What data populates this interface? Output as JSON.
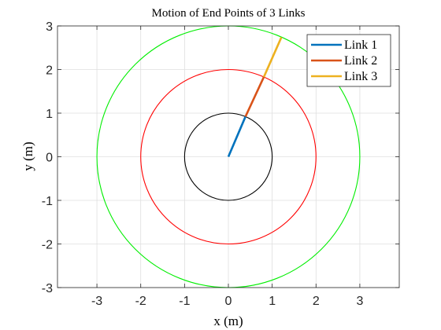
{
  "chart_data": {
    "type": "line",
    "title": "Motion of End Points of 3 Links",
    "xlabel": "x (m)",
    "ylabel": "y (m)",
    "xlim": [
      -3.9,
      3.9
    ],
    "ylim": [
      -3,
      3
    ],
    "xticks": [
      -3,
      -2,
      -1,
      0,
      1,
      2,
      3
    ],
    "yticks": [
      -3,
      -2,
      -1,
      0,
      1,
      2,
      3
    ],
    "xtick_labels": [
      "-3",
      "-2",
      "-1",
      "0",
      "1",
      "2",
      "3"
    ],
    "ytick_labels": [
      "-3",
      "-2",
      "-1",
      "0",
      "1",
      "2",
      "3"
    ],
    "grid": true,
    "legend_position": "top-right",
    "circles": [
      {
        "center": [
          0,
          0
        ],
        "radius": 1,
        "color": "#000000"
      },
      {
        "center": [
          0,
          0
        ],
        "radius": 2,
        "color": "#ff0000"
      },
      {
        "center": [
          0,
          0
        ],
        "radius": 3,
        "color": "#00ee00"
      }
    ],
    "series": [
      {
        "name": "Link 1",
        "x": [
          0,
          0.39
        ],
        "y": [
          0,
          0.92
        ],
        "color": "#0072bd"
      },
      {
        "name": "Link 2",
        "x": [
          0.39,
          0.81
        ],
        "y": [
          0.92,
          1.83
        ],
        "color": "#d95319"
      },
      {
        "name": "Link 3",
        "x": [
          0.81,
          1.21
        ],
        "y": [
          1.83,
          2.74
        ],
        "color": "#edb120"
      }
    ]
  }
}
